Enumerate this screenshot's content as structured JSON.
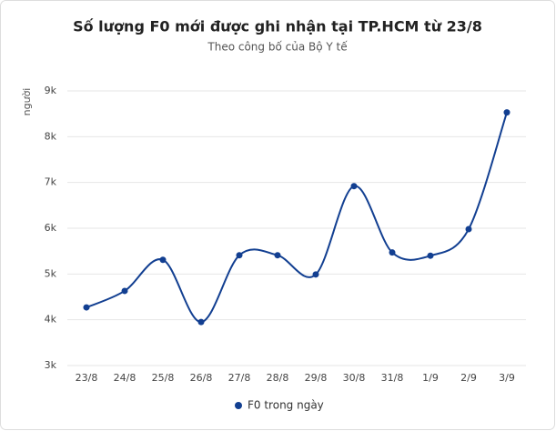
{
  "chart_data": {
    "type": "line",
    "title": "Số lượng F0 mới được ghi nhận tại TP.HCM từ 23/8",
    "subtitle": "Theo công bố của Bộ Y tế",
    "y_label": "người",
    "categories": [
      "23/8",
      "24/8",
      "25/8",
      "26/8",
      "27/8",
      "28/8",
      "29/8",
      "30/8",
      "31/8",
      "1/9",
      "2/9",
      "3/9"
    ],
    "series": [
      {
        "name": "F0 trong ngày",
        "color": "#123f91",
        "values": [
          4270,
          4630,
          5310,
          3950,
          5410,
          5410,
          4990,
          6920,
          5470,
          5400,
          5980,
          8530
        ]
      }
    ],
    "ylim": [
      3000,
      9000
    ],
    "yticks": [
      {
        "value": 3000,
        "label": "3k"
      },
      {
        "value": 4000,
        "label": "4k"
      },
      {
        "value": 5000,
        "label": "5k"
      },
      {
        "value": 6000,
        "label": "6k"
      },
      {
        "value": 7000,
        "label": "7k"
      },
      {
        "value": 8000,
        "label": "8k"
      },
      {
        "value": 9000,
        "label": "9k"
      }
    ],
    "grid": true,
    "smooth": true,
    "legend": "bottom"
  }
}
